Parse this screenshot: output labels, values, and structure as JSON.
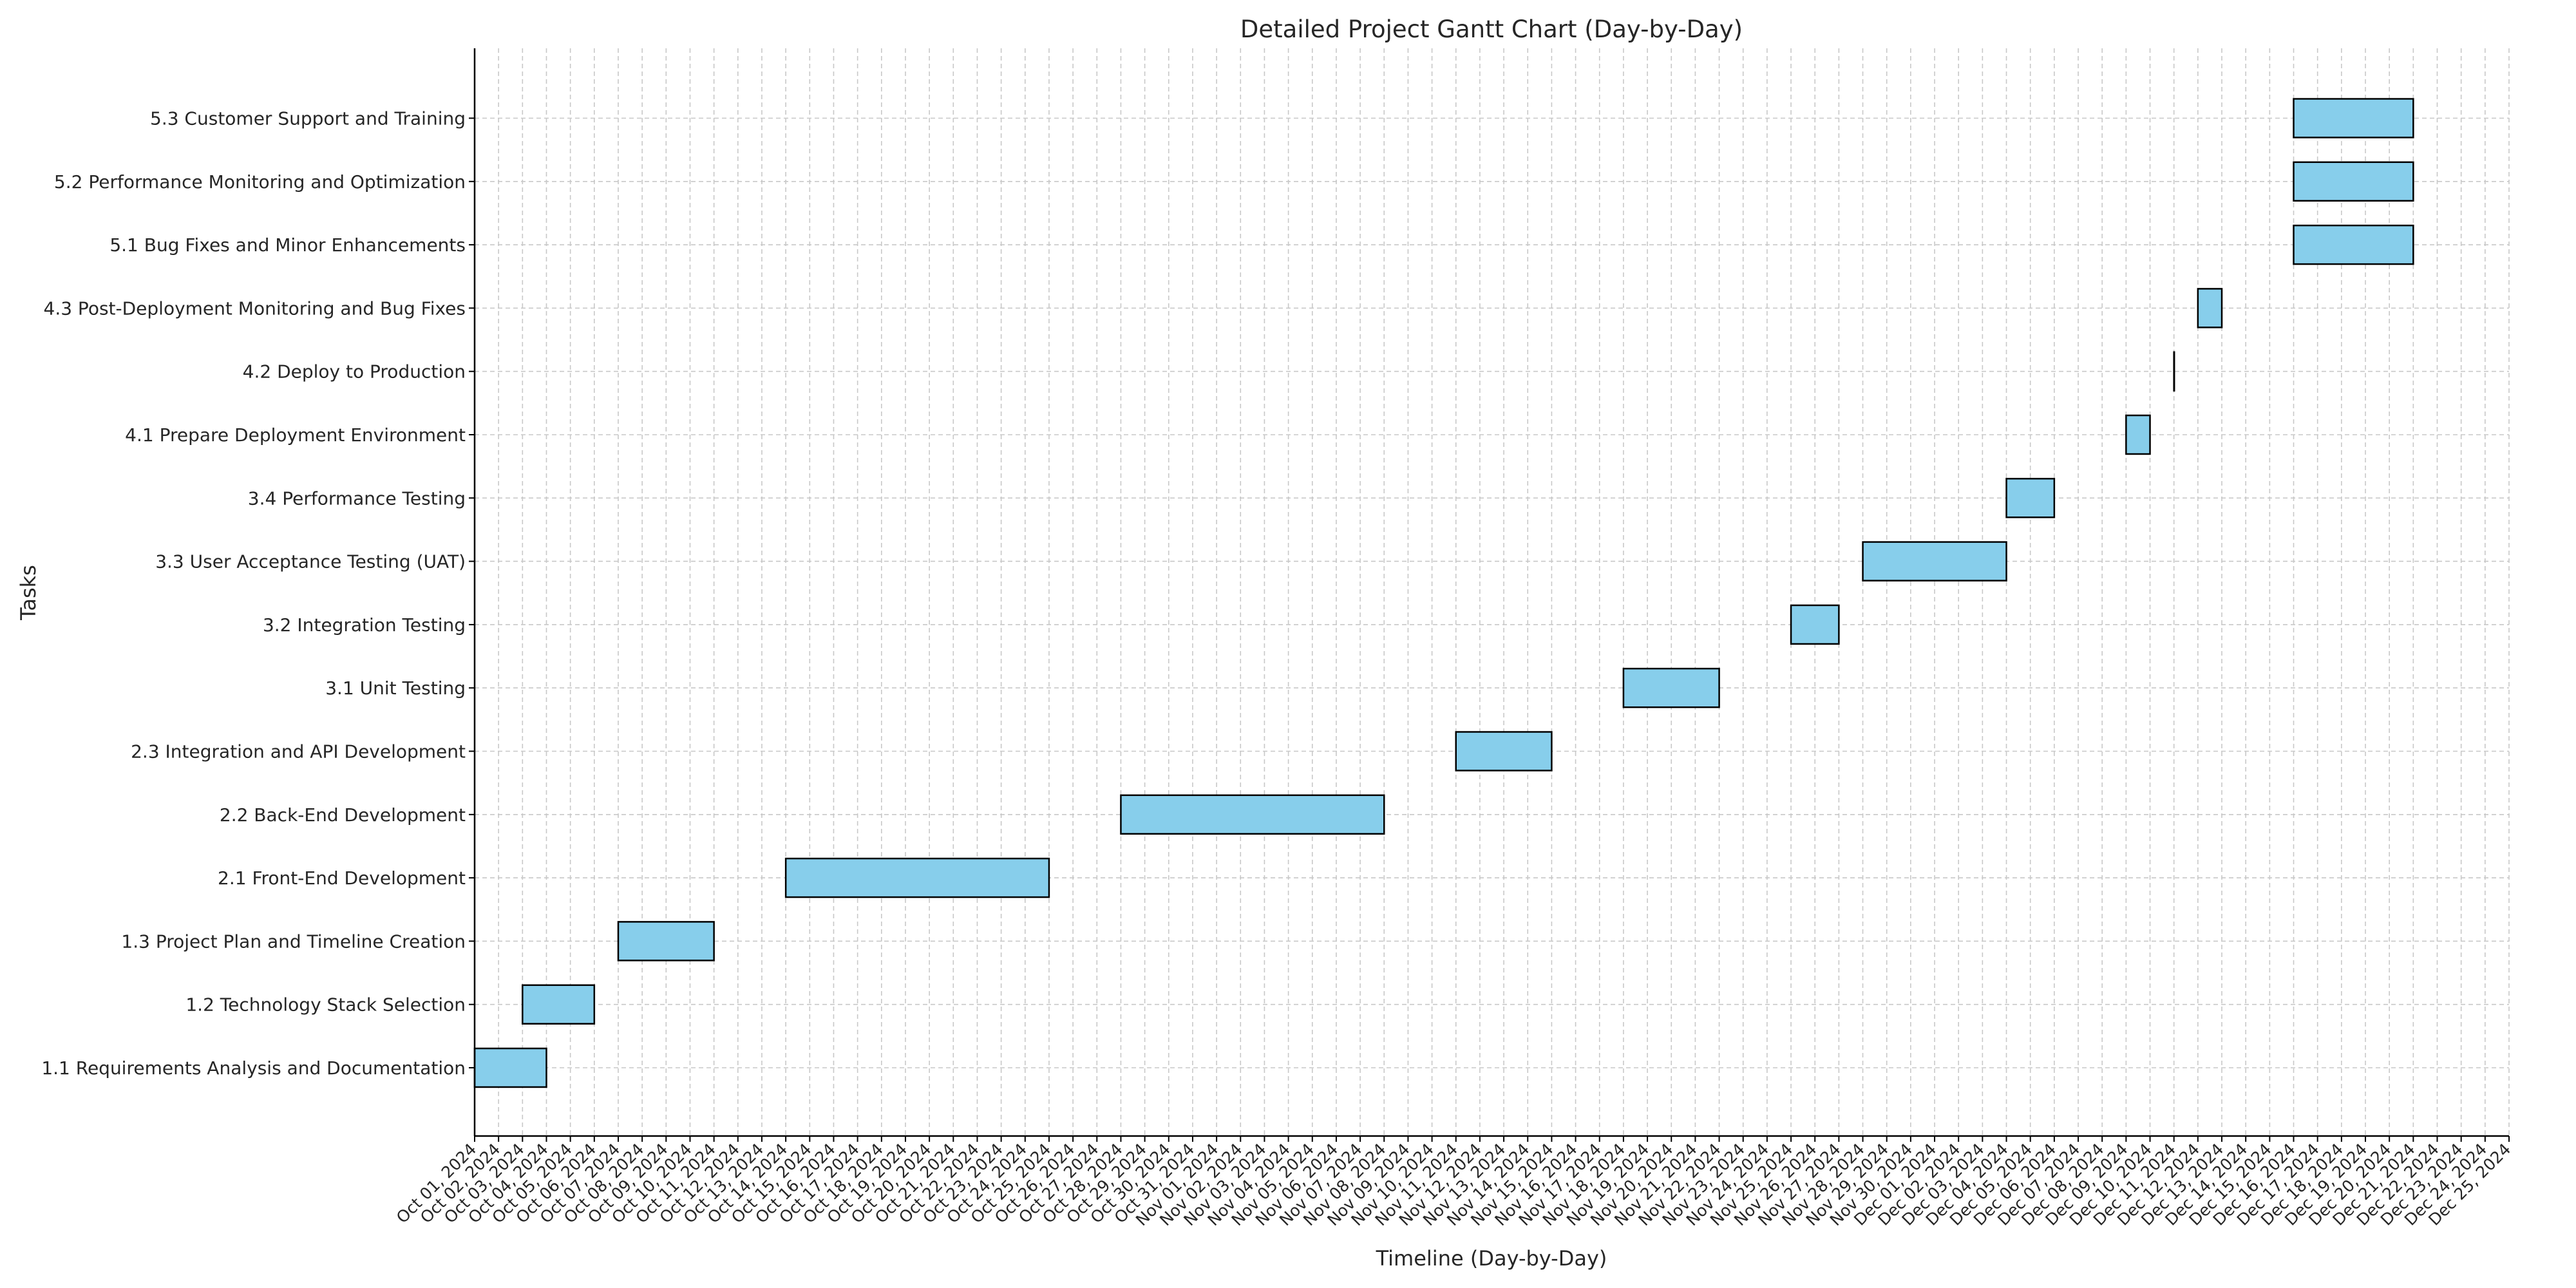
{
  "chart_data": {
    "type": "bar",
    "title": "Detailed Project Gantt Chart (Day-by-Day)",
    "xlabel": "Timeline (Day-by-Day)",
    "ylabel": "Tasks",
    "x_range": [
      "2024-10-01",
      "2024-12-25"
    ],
    "grid": true,
    "bar_color": "#87ceeb",
    "bar_edge_color": "#000000",
    "tasks": [
      {
        "name": "1.1 Requirements Analysis and Documentation",
        "start": "2024-10-01",
        "end": "2024-10-04"
      },
      {
        "name": "1.2 Technology Stack Selection",
        "start": "2024-10-03",
        "end": "2024-10-06"
      },
      {
        "name": "1.3 Project Plan and Timeline Creation",
        "start": "2024-10-07",
        "end": "2024-10-11"
      },
      {
        "name": "2.1 Front-End Development",
        "start": "2024-10-14",
        "end": "2024-10-25"
      },
      {
        "name": "2.2 Back-End Development",
        "start": "2024-10-28",
        "end": "2024-11-08"
      },
      {
        "name": "2.3 Integration and API Development",
        "start": "2024-11-11",
        "end": "2024-11-15"
      },
      {
        "name": "3.1 Unit Testing",
        "start": "2024-11-18",
        "end": "2024-11-22"
      },
      {
        "name": "3.2 Integration Testing",
        "start": "2024-11-25",
        "end": "2024-11-27"
      },
      {
        "name": "3.3 User Acceptance Testing (UAT)",
        "start": "2024-11-28",
        "end": "2024-12-04"
      },
      {
        "name": "3.4 Performance Testing",
        "start": "2024-12-04",
        "end": "2024-12-06"
      },
      {
        "name": "4.1 Prepare Deployment Environment",
        "start": "2024-12-09",
        "end": "2024-12-10"
      },
      {
        "name": "4.2 Deploy to Production",
        "start": "2024-12-11",
        "end": "2024-12-11"
      },
      {
        "name": "4.3 Post-Deployment Monitoring and Bug Fixes",
        "start": "2024-12-12",
        "end": "2024-12-13"
      },
      {
        "name": "5.1 Bug Fixes and Minor Enhancements",
        "start": "2024-12-16",
        "end": "2024-12-21"
      },
      {
        "name": "5.2 Performance Monitoring and Optimization",
        "start": "2024-12-16",
        "end": "2024-12-21"
      },
      {
        "name": "5.3 Customer Support and Training",
        "start": "2024-12-16",
        "end": "2024-12-21"
      }
    ],
    "x_tick_labels": [
      "Oct 01, 2024",
      "Oct 02, 2024",
      "Oct 03, 2024",
      "Oct 04, 2024",
      "Oct 05, 2024",
      "Oct 06, 2024",
      "Oct 07, 2024",
      "Oct 08, 2024",
      "Oct 09, 2024",
      "Oct 10, 2024",
      "Oct 11, 2024",
      "Oct 12, 2024",
      "Oct 13, 2024",
      "Oct 14, 2024",
      "Oct 15, 2024",
      "Oct 16, 2024",
      "Oct 17, 2024",
      "Oct 18, 2024",
      "Oct 19, 2024",
      "Oct 20, 2024",
      "Oct 21, 2024",
      "Oct 22, 2024",
      "Oct 23, 2024",
      "Oct 24, 2024",
      "Oct 25, 2024",
      "Oct 26, 2024",
      "Oct 27, 2024",
      "Oct 28, 2024",
      "Oct 29, 2024",
      "Oct 30, 2024",
      "Oct 31, 2024",
      "Nov 01, 2024",
      "Nov 02, 2024",
      "Nov 03, 2024",
      "Nov 04, 2024",
      "Nov 05, 2024",
      "Nov 06, 2024",
      "Nov 07, 2024",
      "Nov 08, 2024",
      "Nov 09, 2024",
      "Nov 10, 2024",
      "Nov 11, 2024",
      "Nov 12, 2024",
      "Nov 13, 2024",
      "Nov 14, 2024",
      "Nov 15, 2024",
      "Nov 16, 2024",
      "Nov 17, 2024",
      "Nov 18, 2024",
      "Nov 19, 2024",
      "Nov 20, 2024",
      "Nov 21, 2024",
      "Nov 22, 2024",
      "Nov 23, 2024",
      "Nov 24, 2024",
      "Nov 25, 2024",
      "Nov 26, 2024",
      "Nov 27, 2024",
      "Nov 28, 2024",
      "Nov 29, 2024",
      "Nov 30, 2024",
      "Dec 01, 2024",
      "Dec 02, 2024",
      "Dec 03, 2024",
      "Dec 04, 2024",
      "Dec 05, 2024",
      "Dec 06, 2024",
      "Dec 07, 2024",
      "Dec 08, 2024",
      "Dec 09, 2024",
      "Dec 10, 2024",
      "Dec 11, 2024",
      "Dec 12, 2024",
      "Dec 13, 2024",
      "Dec 14, 2024",
      "Dec 15, 2024",
      "Dec 16, 2024",
      "Dec 17, 2024",
      "Dec 18, 2024",
      "Dec 19, 2024",
      "Dec 20, 2024",
      "Dec 21, 2024",
      "Dec 22, 2024",
      "Dec 23, 2024",
      "Dec 24, 2024",
      "Dec 25, 2024"
    ]
  }
}
